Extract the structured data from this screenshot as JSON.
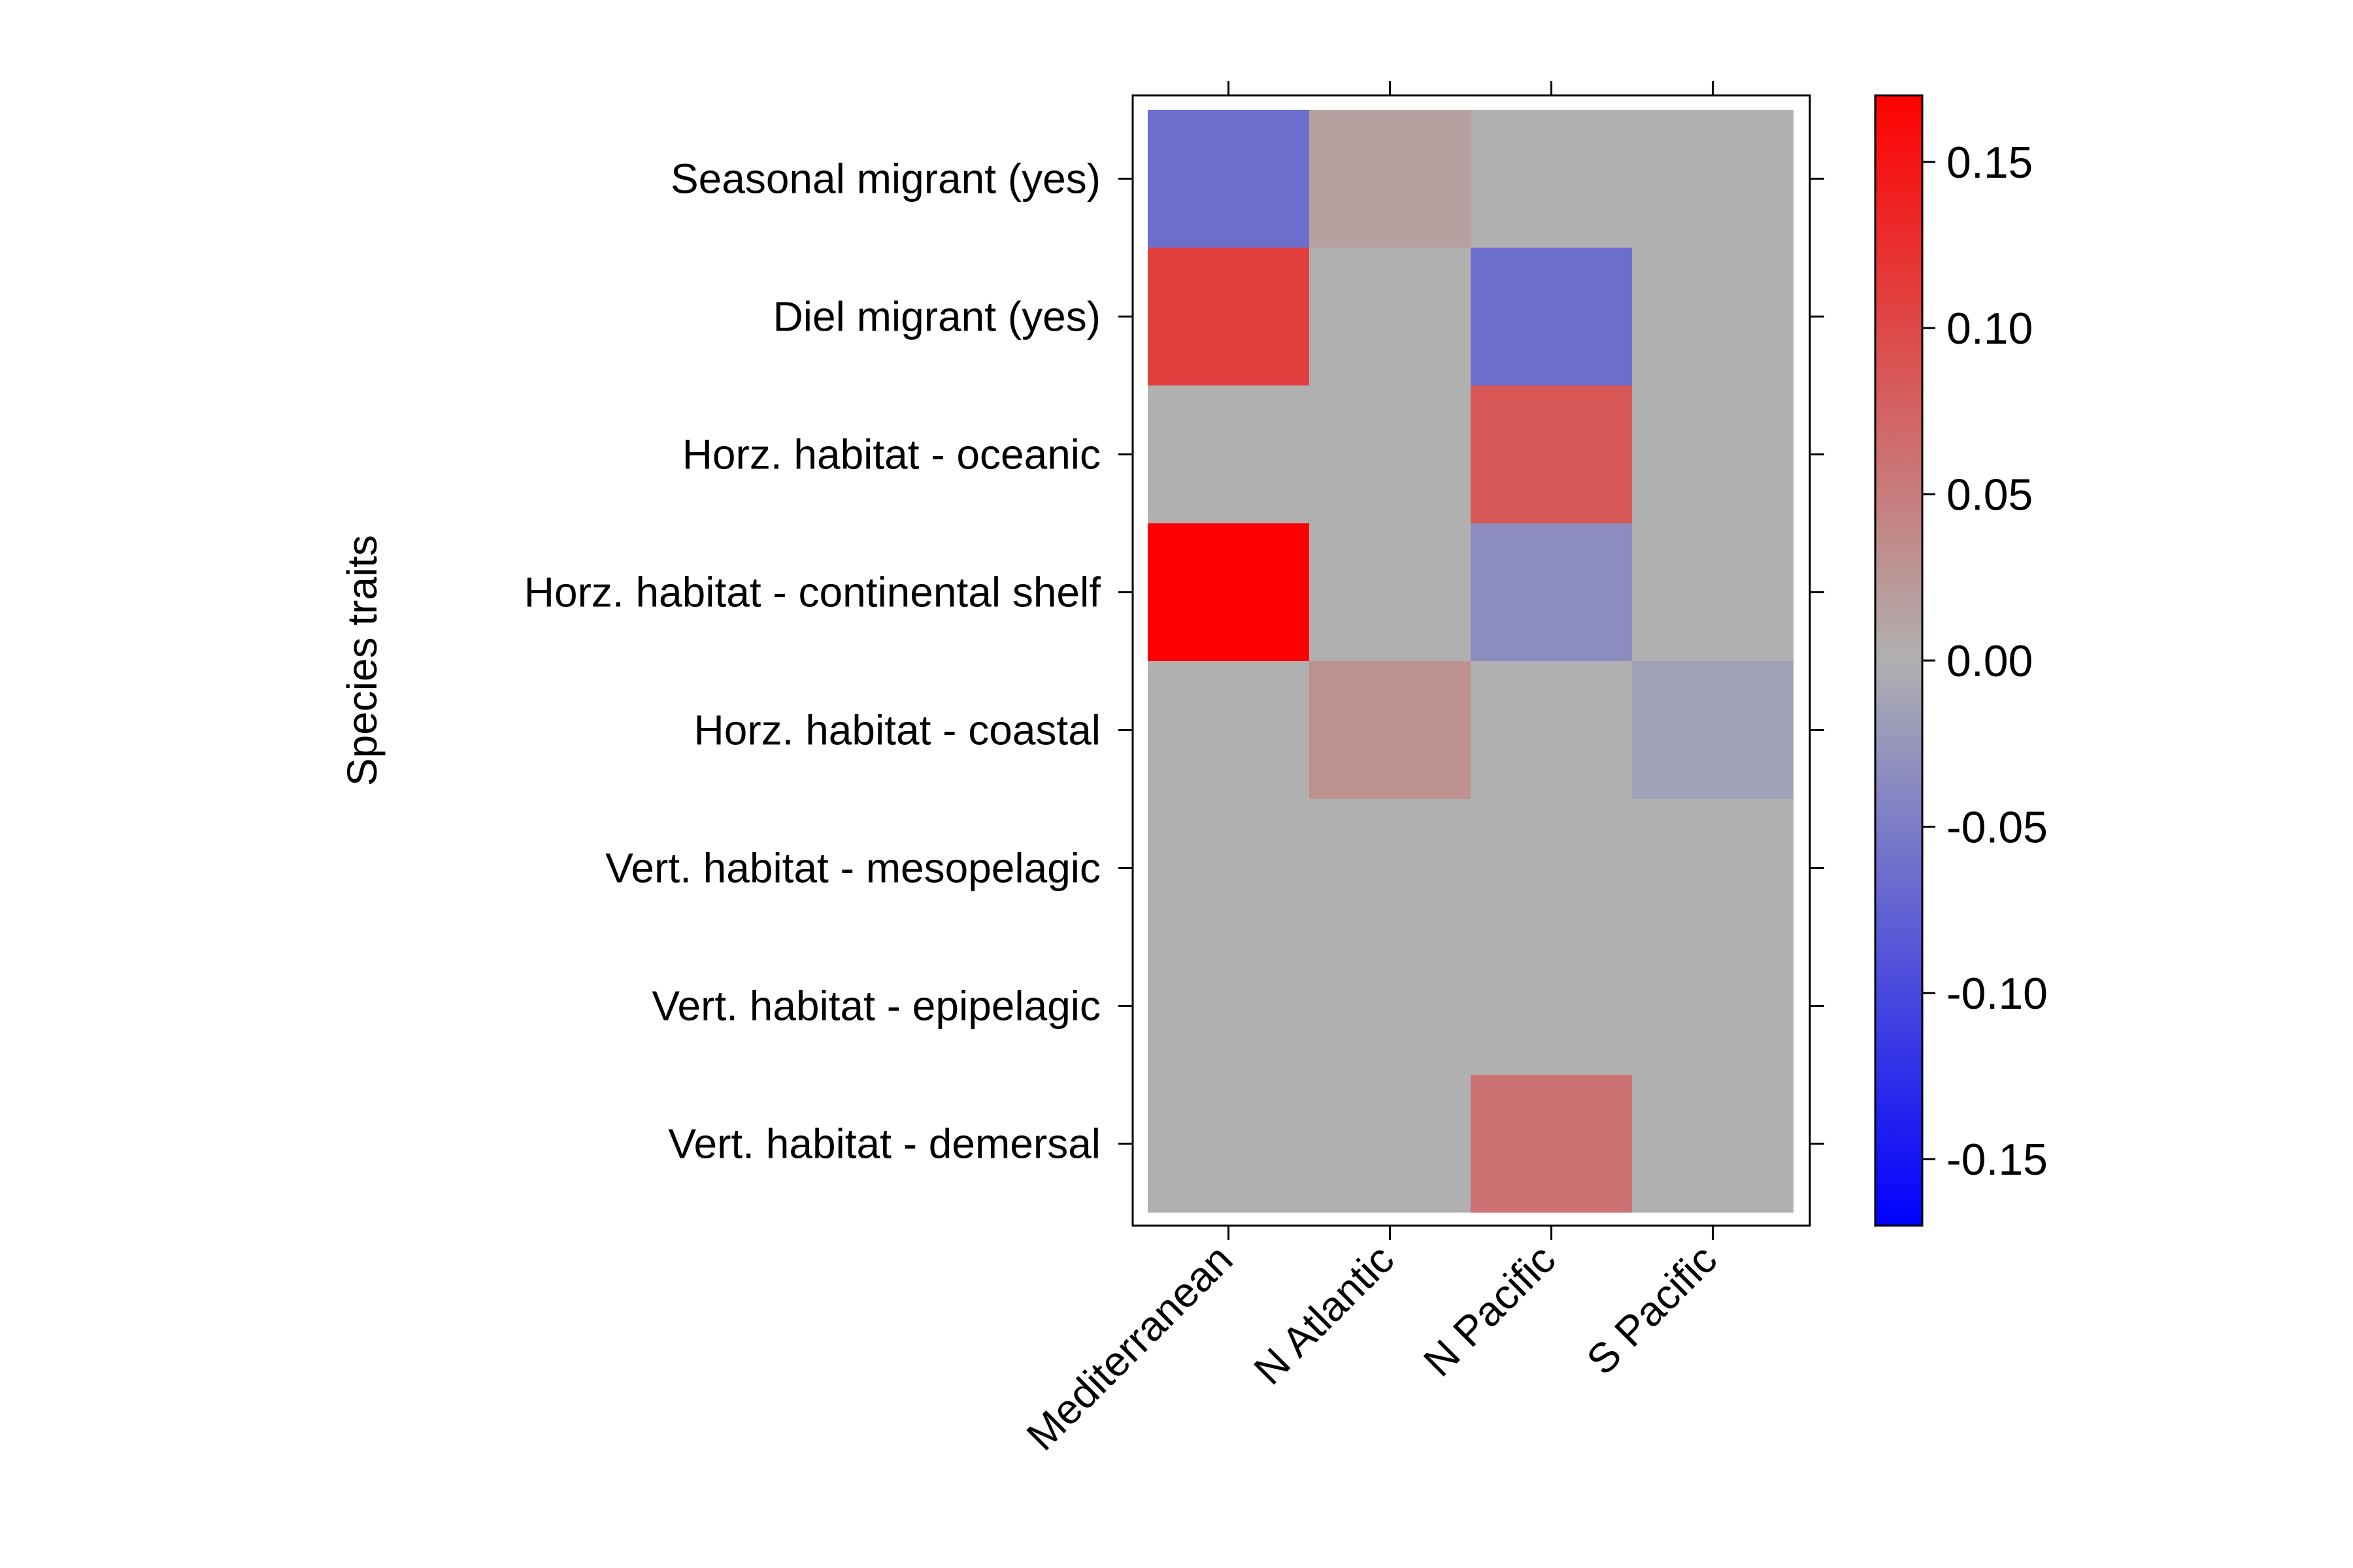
{
  "chart_data": {
    "type": "heatmap",
    "title": "",
    "xlabel": "",
    "ylabel": "Species traits",
    "x_categories": [
      "Mediterranean",
      "N Atlantic",
      "N Pacific",
      "S Pacific"
    ],
    "y_categories": [
      "Seasonal migrant (yes)",
      "Diel migrant (yes)",
      "Horz. habitat - oceanic",
      "Horz. habitat - continental shelf",
      "Horz. habitat - coastal",
      "Vert. habitat - mesopelagic",
      "Vert. habitat - epipelagic",
      "Vert. habitat - demersal"
    ],
    "values": [
      [
        -0.065,
        0.015,
        0.0,
        0.0
      ],
      [
        0.11,
        0.0,
        -0.065,
        0.0
      ],
      [
        0.0,
        0.0,
        0.085,
        0.0
      ],
      [
        0.17,
        0.0,
        -0.035,
        0.0
      ],
      [
        0.0,
        0.03,
        0.0,
        -0.015
      ],
      [
        0.0,
        0.0,
        0.0,
        0.0
      ],
      [
        0.0,
        0.0,
        0.0,
        0.0
      ],
      [
        0.0,
        0.0,
        0.06,
        0.0
      ]
    ],
    "colorbar": {
      "range": [
        -0.17,
        0.17
      ],
      "ticks": [
        "0.15",
        "0.10",
        "0.05",
        "0.00",
        "-0.05",
        "-0.10",
        "-0.15"
      ],
      "tick_values": [
        0.15,
        0.1,
        0.05,
        0.0,
        -0.05,
        -0.1,
        -0.15
      ],
      "colors": {
        "low": "#0000ff",
        "mid": "#b0b0b0",
        "high": "#ff0000"
      }
    }
  }
}
